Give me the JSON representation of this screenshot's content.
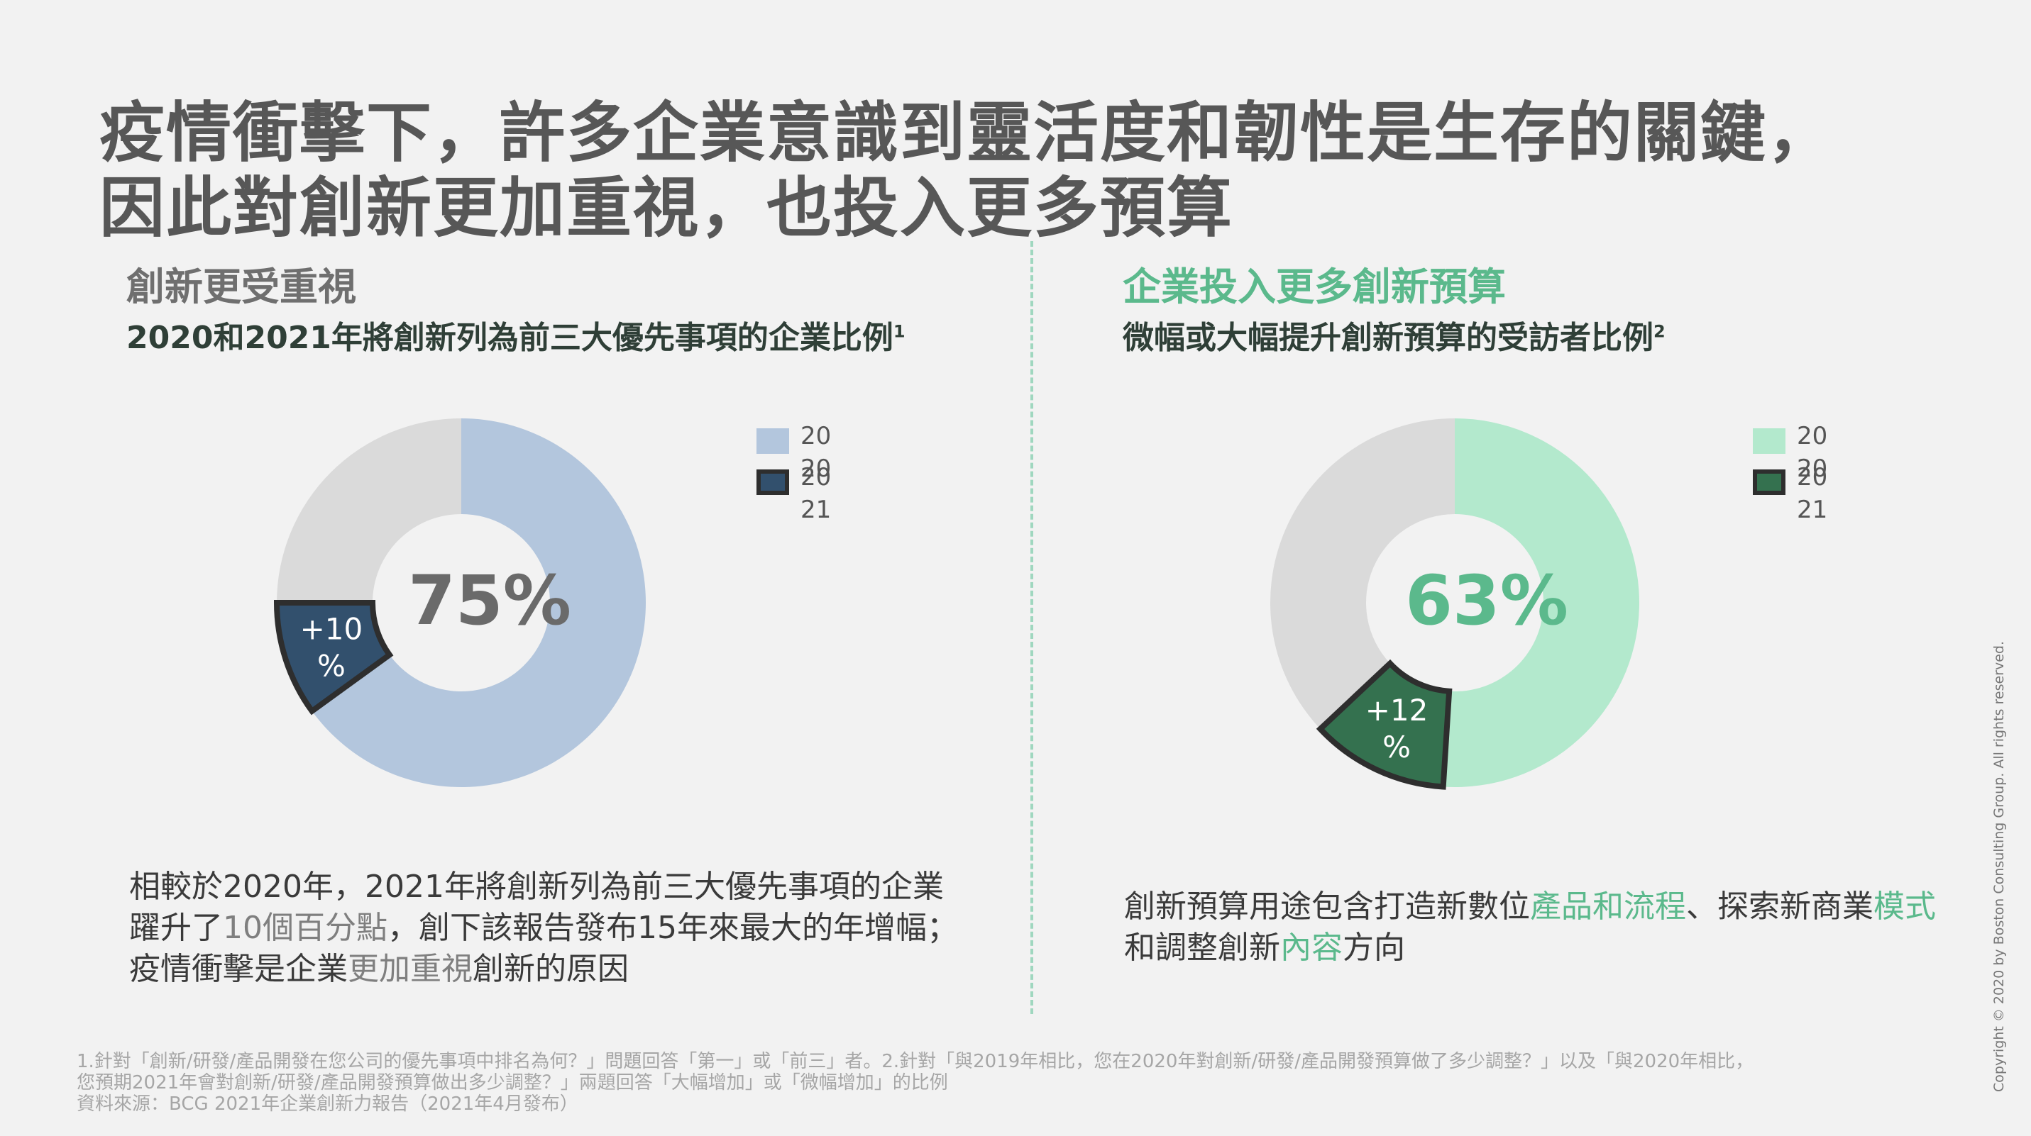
{
  "title": {
    "line1": "疫情衝擊下，許多企業意識到靈活度和韌性是生存的關鍵，",
    "line2": "因此對創新更加重視，也投入更多預算"
  },
  "left": {
    "section_title": "創新更受重視",
    "subtitle": "2020和2021年將創新列為前三大優先事項的企業比例",
    "subtitle_sup": "1",
    "legend": [
      "2020",
      "2021"
    ],
    "center_label": "75%",
    "delta_label": "+10%",
    "note": {
      "p1": "相較於2020年，2021年將創新列為前三大優先事項的企業躍升了",
      "h1": "10個百分點",
      "p2": "，創下該報告發布15年來最大的年增幅；疫情衝擊是企業",
      "h2": "更加重視",
      "p3": "創新的原因"
    }
  },
  "right": {
    "section_title": "企業投入更多創新預算",
    "subtitle": "微幅或大幅提升創新預算的受訪者比例",
    "subtitle_sup": "2",
    "legend": [
      "2020",
      "2021"
    ],
    "center_label": "63%",
    "delta_label": "+12%",
    "note": {
      "p1": "創新預算用途包含打造新數位",
      "h1": "產品和流程",
      "p2": "、探索新商業",
      "h2": "模式",
      "p3": "和調整創新",
      "h3": "內容",
      "p4": "方向"
    }
  },
  "footnote": {
    "line1": "1.針對「創新/研發/產品開發在您公司的優先事項中排名為何？」問題回答「第一」或「前三」者。2.針對「與2019年相比，您在2020年對創新/研發/產品開發預算做了多少調整？」以及「與2020年相比，",
    "line2": "您預期2021年會對創新/研發/產品開發預算做出多少調整？」兩題回答「大幅增加」或「微幅增加」的比例",
    "line3": "資料來源：BCG 2021年企業創新力報告（2021年4月發布）"
  },
  "copyright": "Copyright © 2020 by Boston Consulting Group. All rights reserved.",
  "colors": {
    "left_2020": "#b3c6dd",
    "left_2021": "#32506d",
    "right_2020": "#b3e9cd",
    "right_2021": "#34714f",
    "remainder": "#dadada",
    "accent_green": "#5bb98c",
    "accent_grey": "#7f7f7f"
  },
  "chart_data": [
    {
      "type": "pie",
      "title": "2020和2021年將創新列為前三大優先事項的企業比例",
      "series": [
        {
          "name": "2020",
          "values": [
            65
          ]
        },
        {
          "name": "2021",
          "values": [
            75
          ]
        }
      ],
      "annotations": [
        "75%",
        "+10%"
      ],
      "legend_position": "top-right"
    },
    {
      "type": "pie",
      "title": "微幅或大幅提升創新預算的受訪者比例",
      "series": [
        {
          "name": "2020",
          "values": [
            51
          ]
        },
        {
          "name": "2021",
          "values": [
            63
          ]
        }
      ],
      "annotations": [
        "63%",
        "+12%"
      ],
      "legend_position": "top-right"
    }
  ]
}
